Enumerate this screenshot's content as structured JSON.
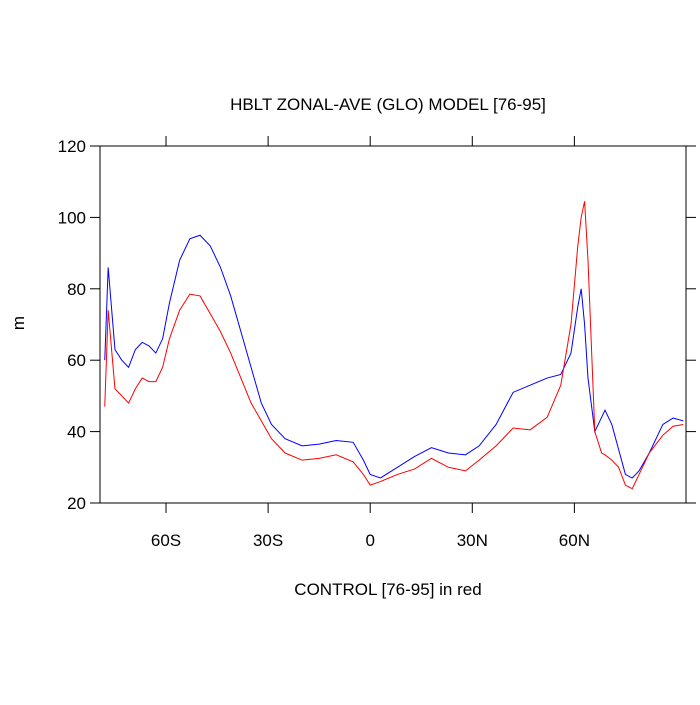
{
  "chart_data": {
    "type": "line",
    "title": "HBLT ZONAL-AVE (GLO) MODEL [76-95]",
    "x_label": "CONTROL [76-95] in red",
    "y_label": "m",
    "x": [
      -78,
      -77,
      -75,
      -73,
      -71,
      -69,
      -67,
      -65,
      -63,
      -61,
      -59,
      -56,
      -53,
      -50,
      -47,
      -44,
      -41,
      -38,
      -35,
      -32,
      -29,
      -25,
      -20,
      -15,
      -10,
      -5,
      -2,
      0,
      3,
      8,
      13,
      18,
      23,
      28,
      32,
      37,
      42,
      47,
      52,
      56,
      59,
      61,
      62,
      63,
      64,
      66,
      68,
      69,
      71,
      73,
      75,
      77,
      79,
      82,
      86,
      89,
      92
    ],
    "series": [
      {
        "color": "#0000ff",
        "values": [
          60,
          86,
          63,
          60,
          58,
          63,
          65,
          64,
          62,
          66,
          76,
          88,
          94,
          95,
          92,
          86,
          78,
          68,
          58,
          48,
          42,
          38,
          36,
          36.5,
          37.5,
          37,
          32,
          28,
          27,
          30,
          33,
          35.5,
          34,
          33.5,
          36,
          42,
          51,
          53,
          55,
          56,
          62,
          75,
          80,
          70,
          55,
          40,
          44,
          46,
          42,
          35,
          28,
          27,
          29,
          34,
          42,
          43.8,
          43
        ]
      },
      {
        "color": "#ff0000",
        "values": [
          47,
          74,
          52,
          50,
          48,
          52,
          55,
          54,
          54,
          58,
          66,
          74,
          78.5,
          78,
          73,
          68,
          62,
          55,
          48,
          43,
          38,
          34,
          32,
          32.5,
          33.5,
          31.5,
          28,
          25,
          26,
          28,
          29.5,
          32.5,
          30,
          29,
          32,
          36,
          41,
          40.5,
          44,
          53,
          70,
          92,
          100,
          104.5,
          88,
          40,
          34,
          33.5,
          32,
          30,
          25,
          24,
          28,
          34,
          39,
          41.5,
          42
        ]
      }
    ],
    "xlim": [
      -79.4,
      92.8
    ],
    "xticks": [
      {
        "value": -60,
        "label": "60S"
      },
      {
        "value": -30,
        "label": "30S"
      },
      0,
      {
        "value": 30,
        "label": "30N"
      },
      {
        "value": 60,
        "label": "60N"
      }
    ],
    "ylim": [
      20,
      120
    ],
    "yticks": [
      20,
      40,
      60,
      80,
      100,
      120
    ]
  }
}
